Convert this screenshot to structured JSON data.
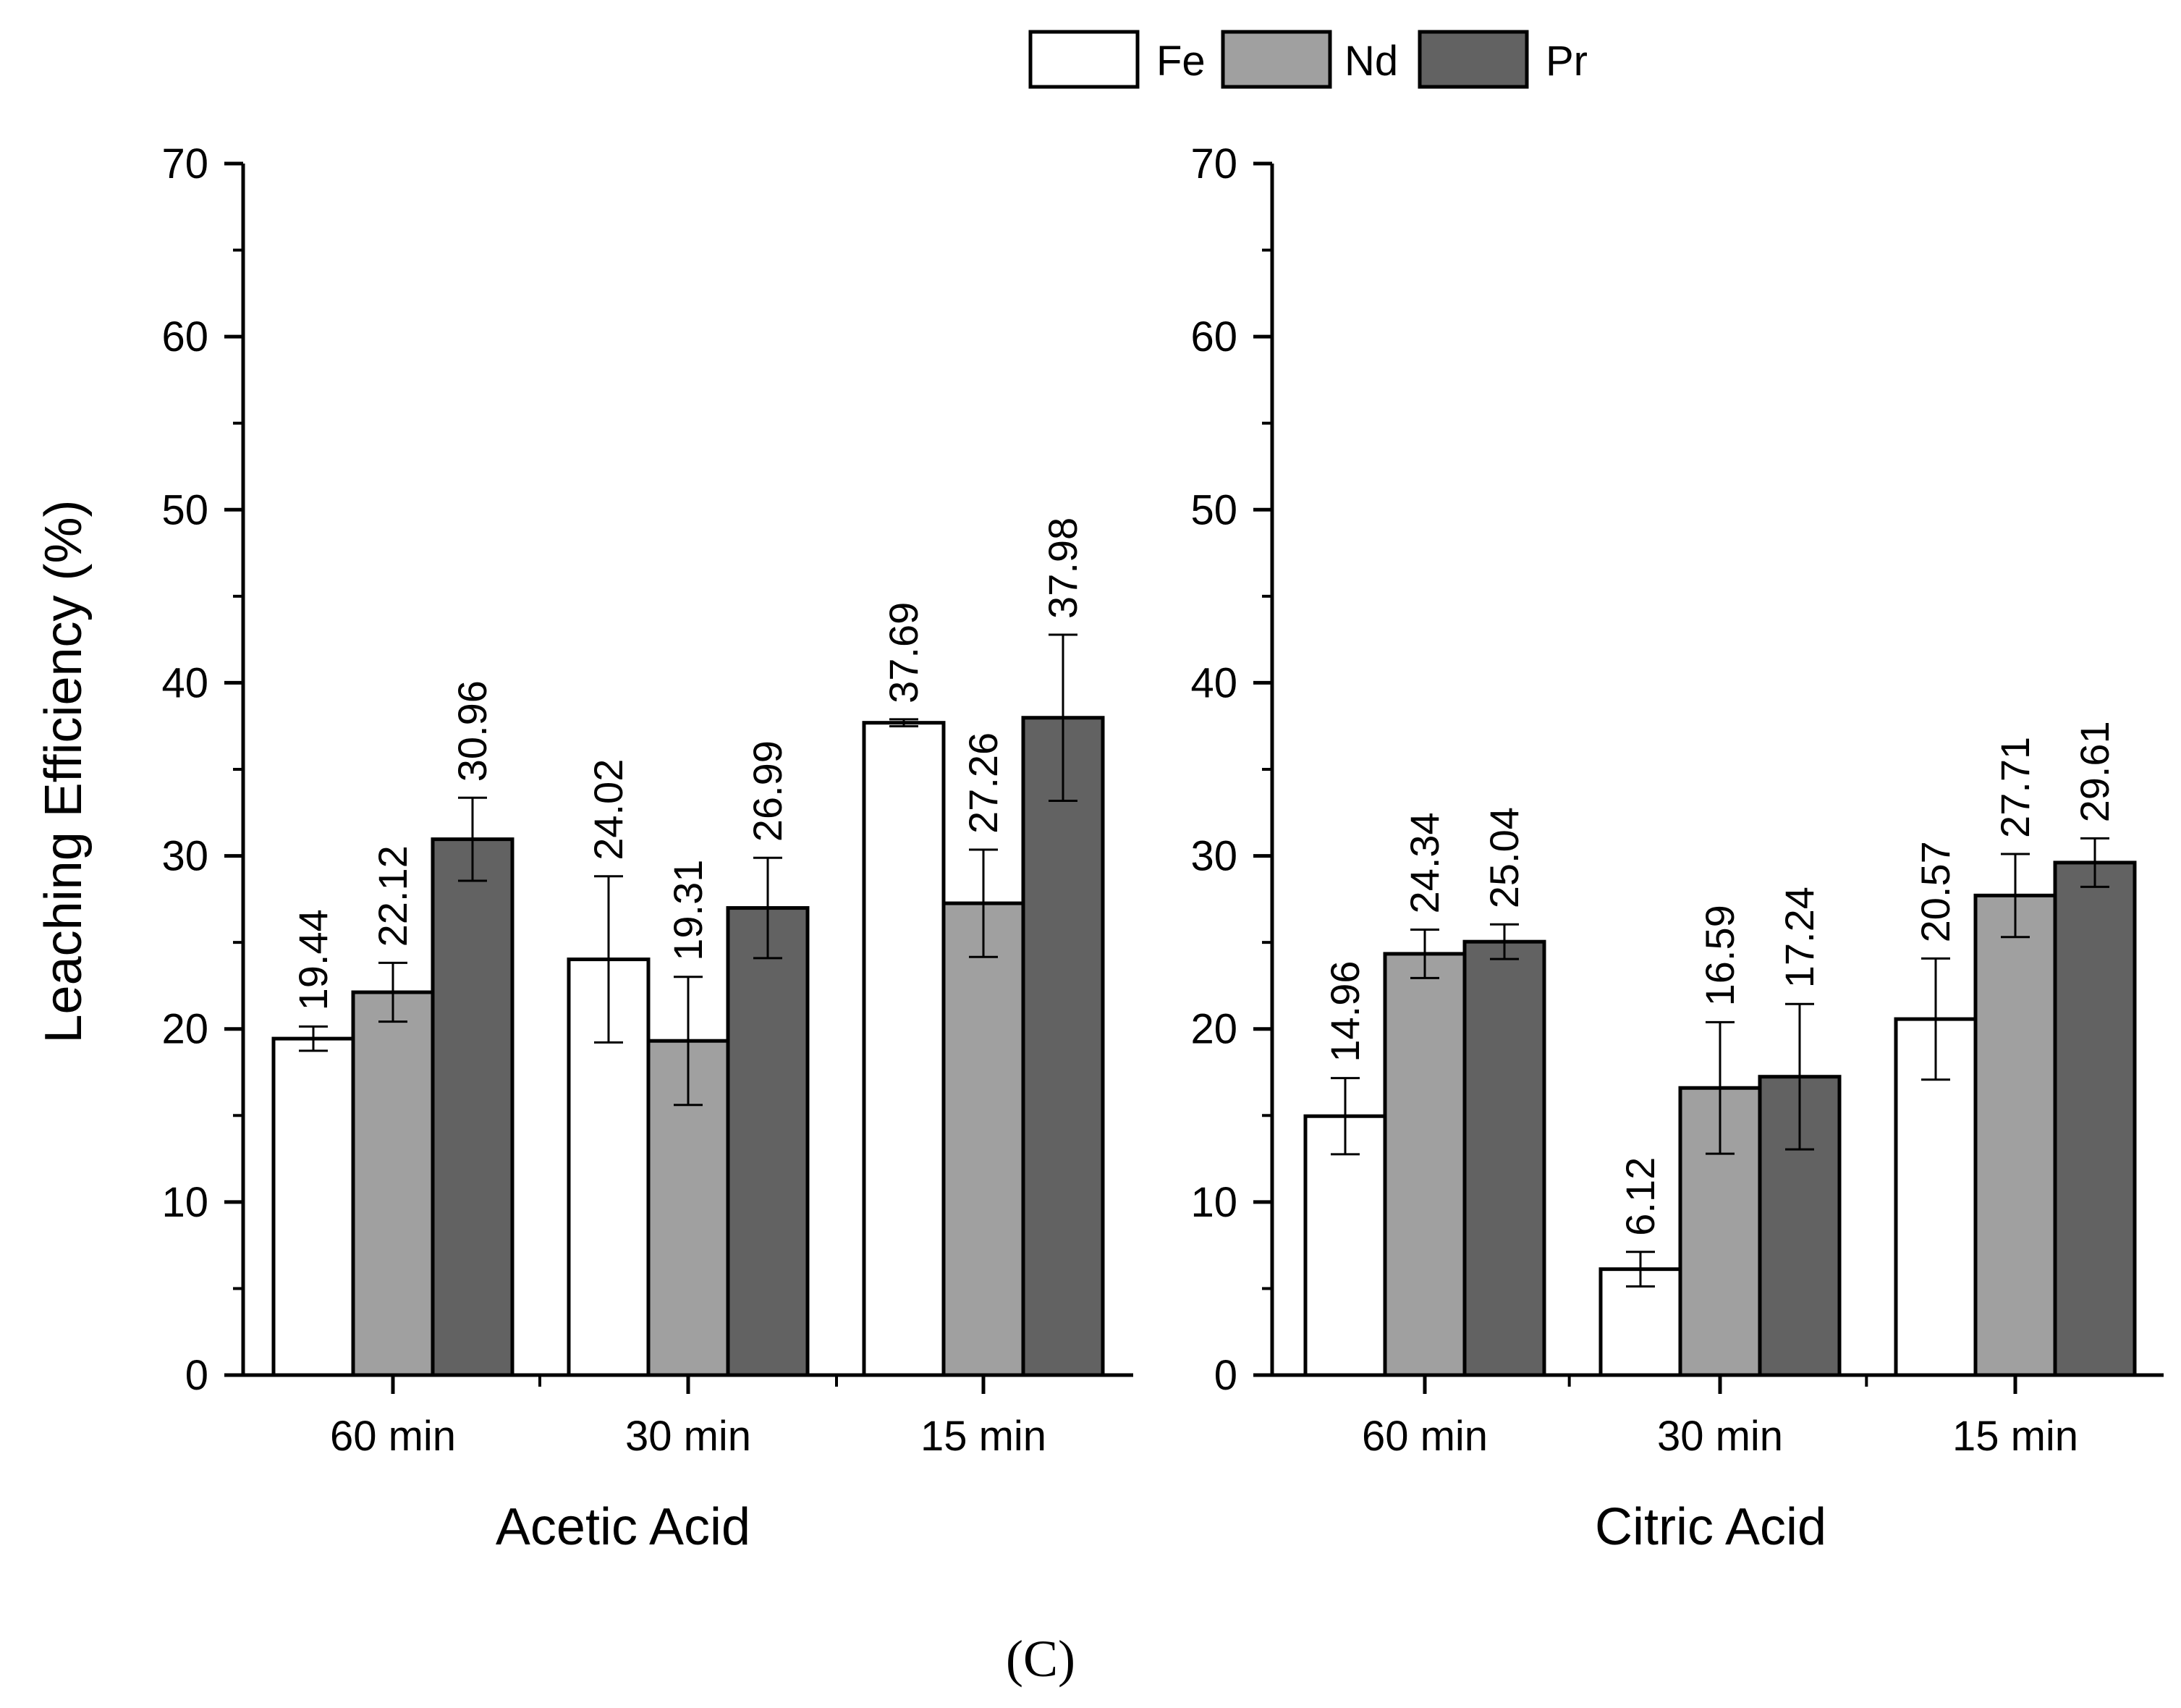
{
  "chart_data": [
    {
      "type": "bar",
      "title": "",
      "xlabel": "Acetic Acid",
      "ylabel": "Leaching Efficiency (%)",
      "ylim": [
        0,
        70
      ],
      "yticks": [
        "0",
        "10",
        "20",
        "30",
        "40",
        "50",
        "60",
        "70"
      ],
      "categories": [
        "60 min",
        "30 min",
        "15 min"
      ],
      "series": [
        {
          "name": "Fe",
          "values": [
            19.44,
            24.02,
            37.69
          ],
          "errors": [
            0.7,
            4.8,
            0.2
          ],
          "labels": [
            "19.44",
            "24.02",
            "37.69"
          ]
        },
        {
          "name": "Nd",
          "values": [
            22.12,
            19.31,
            27.26
          ],
          "errors": [
            1.7,
            3.7,
            3.1
          ],
          "labels": [
            "22.12",
            "19.31",
            "27.26"
          ]
        },
        {
          "name": "Pr",
          "values": [
            30.96,
            26.99,
            37.98
          ],
          "errors": [
            2.4,
            2.9,
            4.8
          ],
          "labels": [
            "30.96",
            "26.99",
            "37.98"
          ]
        }
      ]
    },
    {
      "type": "bar",
      "title": "",
      "xlabel": "Citric Acid",
      "ylabel": "",
      "ylim": [
        0,
        70
      ],
      "yticks": [
        "0",
        "10",
        "20",
        "30",
        "40",
        "50",
        "60",
        "70"
      ],
      "categories": [
        "60 min",
        "30 min",
        "15 min"
      ],
      "series": [
        {
          "name": "Fe",
          "values": [
            14.96,
            6.12,
            20.57
          ],
          "errors": [
            2.2,
            1.0,
            3.5
          ],
          "labels": [
            "14.96",
            "6.12",
            "20.57"
          ]
        },
        {
          "name": "Nd",
          "values": [
            24.34,
            16.59,
            27.71
          ],
          "errors": [
            1.4,
            3.8,
            2.4
          ],
          "labels": [
            "24.34",
            "16.59",
            "27.71"
          ]
        },
        {
          "name": "Pr",
          "values": [
            25.04,
            17.24,
            29.61
          ],
          "errors": [
            1.0,
            4.2,
            1.4
          ],
          "labels": [
            "25.04",
            "17.24",
            "29.61"
          ]
        }
      ]
    }
  ],
  "legend": [
    {
      "name": "Fe",
      "color": "#ffffff"
    },
    {
      "name": "Nd",
      "color": "#a0a0a0"
    },
    {
      "name": "Pr",
      "color": "#626262"
    }
  ],
  "panel_label": "(C)"
}
